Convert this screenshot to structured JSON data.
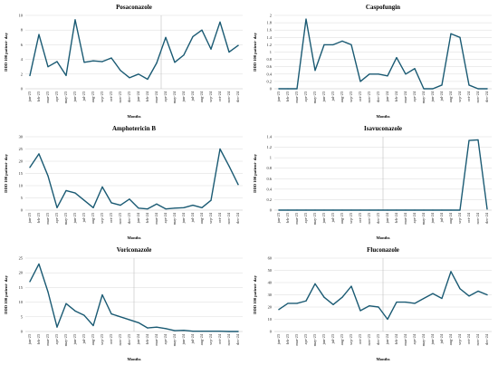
{
  "chart_data": [
    {
      "type": "line",
      "title": "Posaconazole",
      "xlabel": "Months",
      "ylabel": "DDD 100 patient- day",
      "ylim": [
        0,
        10
      ],
      "yticks": [
        0,
        2,
        4,
        6,
        8,
        10
      ],
      "categories": [
        "jan-23",
        "feb-23",
        "mar-23",
        "apr-23",
        "may-23",
        "jun-23",
        "jul-23",
        "aug-23",
        "sep-23",
        "oct-23",
        "nov-23",
        "dec-23",
        "jan-24",
        "feb-24",
        "mar-24",
        "apr-24",
        "may-24",
        "jun-24",
        "jul-24",
        "aug-24",
        "sep-24",
        "oct-24",
        "nov-24",
        "dec-24"
      ],
      "series": [
        {
          "values": [
            1.8,
            7.4,
            3.0,
            3.7,
            1.8,
            9.4,
            3.6,
            3.8,
            3.7,
            4.2,
            2.5,
            1.5,
            2.0,
            1.3,
            3.5,
            7.0,
            3.6,
            4.6,
            7.1,
            8.0,
            5.4,
            9.1,
            5.0,
            5.9
          ]
        }
      ],
      "year_divider_after": "mar-24",
      "grid": true
    },
    {
      "type": "line",
      "title": "Caspofungin",
      "xlabel": "Months",
      "ylabel": "DDD 100 patient- day",
      "ylim": [
        0,
        2
      ],
      "yticks": [
        0,
        0.2,
        0.4,
        0.6,
        0.8,
        1,
        1.2,
        1.4,
        1.6,
        1.8,
        2
      ],
      "categories": [
        "jan-23",
        "feb-23",
        "mar-23",
        "apr-23",
        "may-23",
        "jun-23",
        "jul-23",
        "aug-23",
        "sep-23",
        "oct-23",
        "nov-23",
        "dec-23",
        "jan-24",
        "feb-24",
        "mar-24",
        "apr-24",
        "may-24",
        "jun-24",
        "jul-24",
        "aug-24",
        "sep-24",
        "oct-24",
        "nov-24",
        "dec-24"
      ],
      "series": [
        {
          "values": [
            0,
            0,
            0,
            1.9,
            0.5,
            1.2,
            1.2,
            1.3,
            1.2,
            0.2,
            0.4,
            0.4,
            0.35,
            0.85,
            0.4,
            0.55,
            0,
            0,
            0.1,
            1.5,
            1.4,
            0.1,
            0,
            0
          ]
        }
      ],
      "grid": true
    },
    {
      "type": "line",
      "title": "Amphotericin B",
      "xlabel": "Months",
      "ylabel": "DDD 100 patient- day",
      "ylim": [
        0,
        30
      ],
      "yticks": [
        0,
        5,
        10,
        15,
        20,
        25,
        30
      ],
      "categories": [
        "jan-23",
        "feb-23",
        "mar-23",
        "apr-23",
        "may-23",
        "jun-23",
        "jul-23",
        "aug-23",
        "sep-23",
        "oct-23",
        "nov-23",
        "dec-23",
        "jan-24",
        "feb-24",
        "mar-24",
        "apr-24",
        "may-24",
        "jun-24",
        "jul-24",
        "aug-24",
        "sep-24",
        "oct-24",
        "nov-24",
        "dec-24"
      ],
      "series": [
        {
          "values": [
            17.5,
            23.0,
            14.0,
            1.0,
            8.0,
            7.0,
            4.0,
            1.0,
            9.5,
            3.0,
            2.0,
            4.5,
            0.8,
            0.5,
            2.5,
            0.5,
            0.8,
            1.0,
            2.0,
            1.0,
            4.0,
            25.0,
            18.0,
            10.5
          ]
        }
      ],
      "grid": true
    },
    {
      "type": "line",
      "title": "Isavuconazole",
      "xlabel": "Months",
      "ylabel": "DDD 100 patient- day",
      "ylim": [
        0,
        1.4
      ],
      "yticks": [
        0,
        0.2,
        0.4,
        0.6,
        0.8,
        1,
        1.2,
        1.4
      ],
      "categories": [
        "jan-23",
        "feb-23",
        "mar-23",
        "apr-23",
        "may-23",
        "jun-23",
        "jul-23",
        "aug-23",
        "sep-23",
        "oct-23",
        "nov-23",
        "dec-23",
        "jan-24",
        "feb-24",
        "mar-24",
        "apr-24",
        "may-24",
        "jun-24",
        "jul-24",
        "aug-24",
        "sep-24",
        "oct-24",
        "nov-24",
        "dec-24"
      ],
      "series": [
        {
          "values": [
            0,
            0,
            0,
            0,
            0,
            0,
            0,
            0,
            0,
            0,
            0,
            0,
            0,
            0,
            0,
            0,
            0,
            0,
            0,
            0,
            0,
            1.33,
            1.34,
            0.02
          ]
        }
      ],
      "year_divider_after": "dec-23",
      "grid": true
    },
    {
      "type": "line",
      "title": "Voriconazole",
      "xlabel": "Months",
      "ylabel": "DDD 100 patient- day",
      "ylim": [
        0,
        25
      ],
      "yticks": [
        0,
        5,
        10,
        15,
        20,
        25
      ],
      "categories": [
        "jan-23",
        "feb-23",
        "mar-23",
        "apr-23",
        "may-23",
        "jun-23",
        "jul-23",
        "aug-23",
        "sep-23",
        "oct-23",
        "nov-23",
        "dec-23",
        "jan-24",
        "feb-24",
        "mar-24",
        "apr-24",
        "may-24",
        "jun-24",
        "jul-24",
        "aug-24",
        "sep-24",
        "oct-24",
        "nov-24",
        "dec-24"
      ],
      "series": [
        {
          "values": [
            17.0,
            23.0,
            13.5,
            1.5,
            9.5,
            7.0,
            5.5,
            2.0,
            12.5,
            6.0,
            5.0,
            4.0,
            3.0,
            1.2,
            1.5,
            1.0,
            0.3,
            0.4,
            0.1,
            0.1,
            0.1,
            0.1,
            0,
            0
          ]
        }
      ],
      "year_divider_after": "dec-23",
      "grid": true
    },
    {
      "type": "line",
      "title": "Fluconazole",
      "xlabel": "Months",
      "ylabel": "DDD 100 patient- day",
      "ylim": [
        0,
        60
      ],
      "yticks": [
        0,
        10,
        20,
        30,
        40,
        50,
        60
      ],
      "categories": [
        "jan-23",
        "feb-23",
        "mar-23",
        "apr-23",
        "may-23",
        "jun-23",
        "jul-23",
        "aug-23",
        "sep-23",
        "oct-23",
        "nov-23",
        "dec-23",
        "jan-24",
        "feb-24",
        "mar-24",
        "apr-24",
        "may-24",
        "jun-24",
        "jul-24",
        "aug-24",
        "sep-24",
        "oct-24",
        "nov-24",
        "dec-24"
      ],
      "series": [
        {
          "values": [
            18,
            23,
            23,
            25,
            39,
            28,
            22,
            28,
            37,
            17,
            21,
            20,
            10,
            24,
            24,
            23,
            27,
            31,
            27,
            49,
            35,
            29,
            33,
            30
          ]
        }
      ],
      "year_divider_after": "dec-23",
      "grid": true
    }
  ],
  "line_color": "#1a5a73"
}
